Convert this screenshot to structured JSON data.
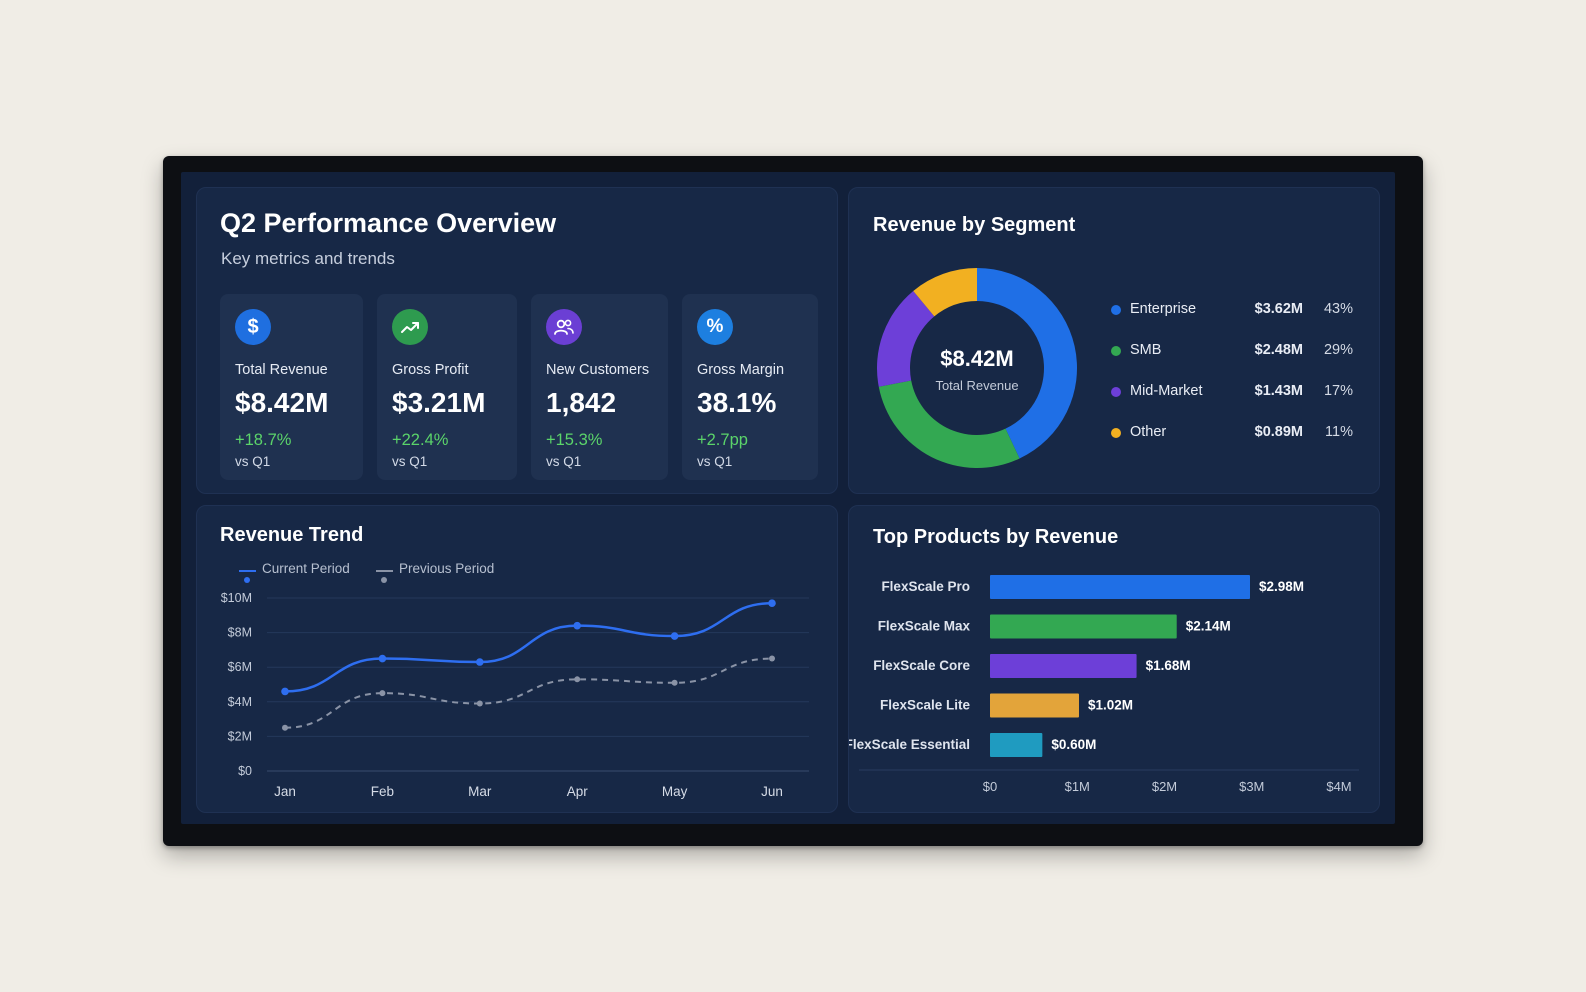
{
  "overview": {
    "title": "Q2 Performance Overview",
    "subtitle": "Key metrics and trends",
    "kpis": [
      {
        "label": "Total Revenue",
        "value": "$8.42M",
        "change": "+18.7%",
        "compare": "vs Q1",
        "icon": "dollar-icon",
        "icon_glyph": "$",
        "color": "#1f6fe0"
      },
      {
        "label": "Gross Profit",
        "value": "$3.21M",
        "change": "+22.4%",
        "compare": "vs Q1",
        "icon": "trend-up-icon",
        "color": "#2e9b4f"
      },
      {
        "label": "New Customers",
        "value": "1,842",
        "change": "+15.3%",
        "compare": "vs Q1",
        "icon": "users-icon",
        "color": "#6b3fd4"
      },
      {
        "label": "Gross Margin",
        "value": "38.1%",
        "change": "+2.7pp",
        "compare": "vs Q1",
        "icon": "percent-icon",
        "icon_glyph": "%",
        "color": "#1d7fe0"
      }
    ]
  },
  "segment": {
    "title": "Revenue by Segment",
    "center_value": "$8.42M",
    "center_label": "Total Revenue",
    "items": [
      {
        "name": "Enterprise",
        "amount": "$3.62M",
        "pct": "43%",
        "value": 43,
        "color": "#1f6fe6"
      },
      {
        "name": "SMB",
        "amount": "$2.48M",
        "pct": "29%",
        "value": 29,
        "color": "#33a852"
      },
      {
        "name": "Mid-Market",
        "amount": "$1.43M",
        "pct": "17%",
        "value": 17,
        "color": "#6d3fd8"
      },
      {
        "name": "Other",
        "amount": "$0.89M",
        "pct": "11%",
        "value": 11,
        "color": "#f2b021"
      }
    ]
  },
  "trend": {
    "title": "Revenue Trend",
    "legend_current": "Current Period",
    "legend_previous": "Previous Period",
    "current_color": "#2e6ef0",
    "previous_color": "#8a93a6"
  },
  "products": {
    "title": "Top Products by Revenue"
  },
  "chart_data": [
    {
      "type": "line",
      "categories": [
        "Jan",
        "Feb",
        "Mar",
        "Apr",
        "May",
        "Jun"
      ],
      "y_ticks": [
        "$10M",
        "$8M",
        "$6M",
        "$4M",
        "$2M",
        "$0"
      ],
      "ylim": [
        0,
        10
      ],
      "grid": true,
      "legend": "top-left",
      "series": [
        {
          "name": "Current Period",
          "values": [
            4.6,
            6.5,
            6.3,
            8.4,
            7.8,
            9.7
          ]
        },
        {
          "name": "Previous Period",
          "values": [
            2.5,
            4.5,
            3.9,
            5.3,
            5.1,
            6.5
          ]
        }
      ]
    },
    {
      "type": "bar",
      "orientation": "horizontal",
      "categories": [
        "FlexScale Pro",
        "FlexScale Max",
        "FlexScale Core",
        "FlexScale Lite",
        "FlexScale Essential"
      ],
      "values": [
        2.98,
        2.14,
        1.68,
        1.02,
        0.6
      ],
      "value_labels": [
        "$2.98M",
        "$2.14M",
        "$1.68M",
        "$1.02M",
        "$0.60M"
      ],
      "colors": [
        "#1f6fe6",
        "#33a852",
        "#6d3fd8",
        "#e3a43a",
        "#1f9bc0"
      ],
      "x_ticks": [
        "$0",
        "$1M",
        "$2M",
        "$3M",
        "$4M"
      ],
      "xlim": [
        0,
        4
      ]
    }
  ]
}
